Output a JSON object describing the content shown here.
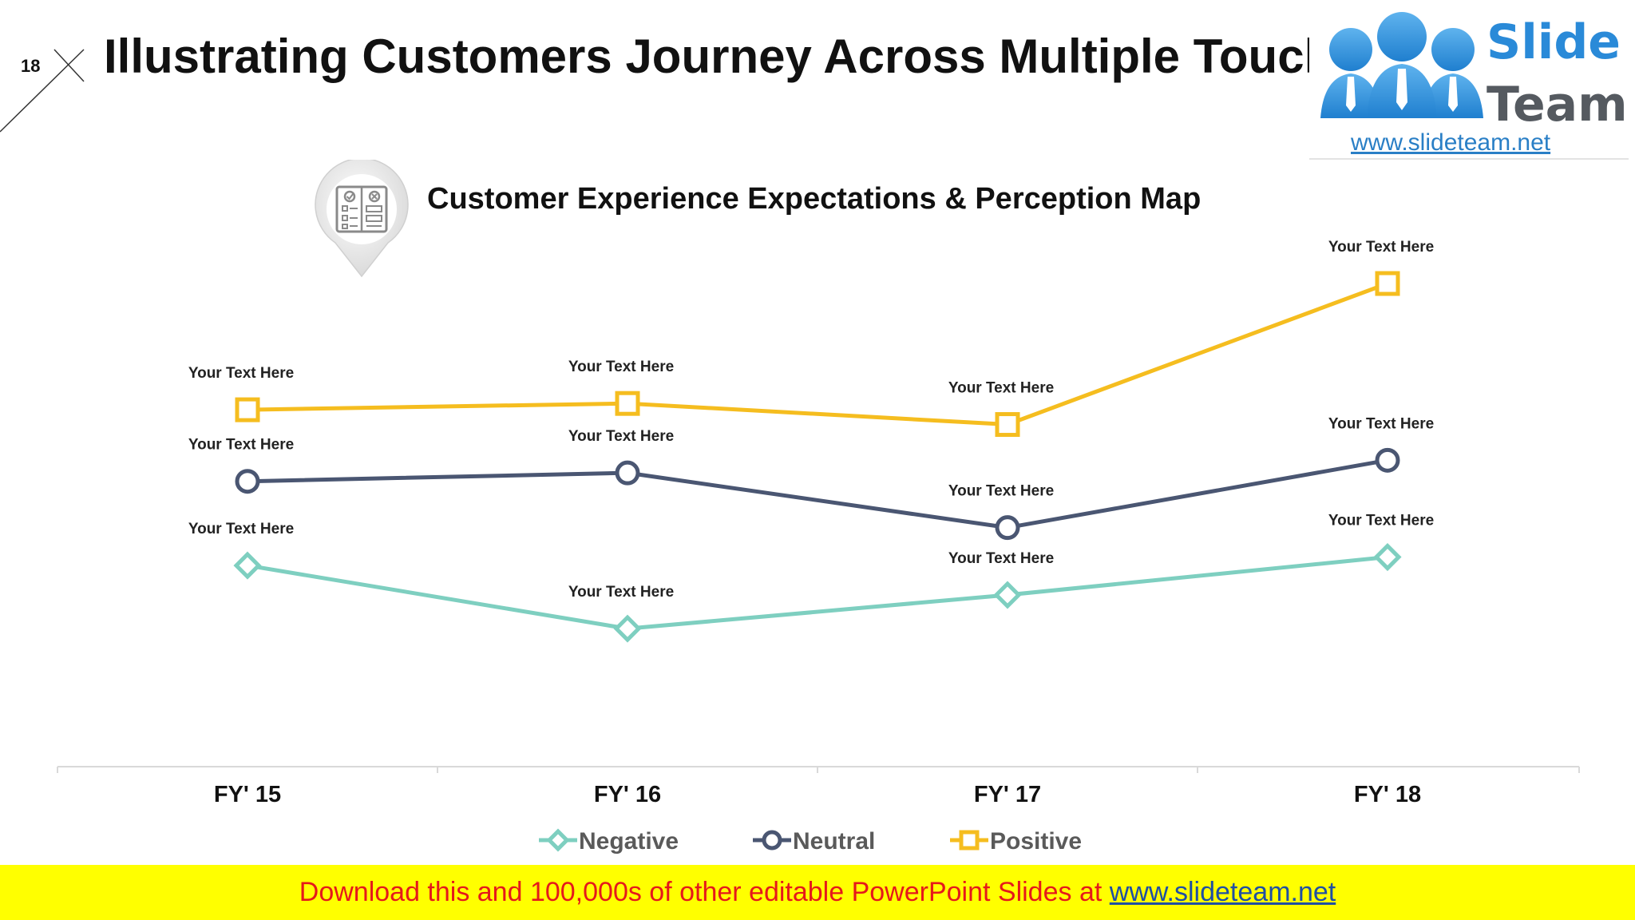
{
  "slide": {
    "number": "18",
    "title": "Illustrating Customers Journey Across Multiple Touchpoints"
  },
  "logo": {
    "word1": "Slide",
    "word2": "Team",
    "url": "www.slideteam.net"
  },
  "footer": {
    "text": "Download this and 100,000s of other editable PowerPoint Slides at ",
    "link": "www.slideteam.net"
  },
  "icon": "checklist-icon",
  "colors": {
    "negative": "#7ecfc0",
    "neutral": "#4a5672",
    "positive": "#f5bd1f",
    "footer_bg": "#ffff00",
    "footer_text": "#e5191b"
  },
  "chart_data": {
    "type": "line",
    "title": "Customer Experience Expectations & Perception Map",
    "categories": [
      "FY' 15",
      "FY' 16",
      "FY' 17",
      "FY' 18"
    ],
    "ylim": [
      0,
      100
    ],
    "grid": false,
    "legend": "bottom",
    "series": [
      {
        "name": "Negative",
        "marker": "diamond",
        "color": "#7ecfc0",
        "values": [
          33,
          18,
          26,
          35
        ],
        "labels": [
          "Your Text Here",
          "Your Text Here",
          "Your Text Here",
          "Your Text Here"
        ]
      },
      {
        "name": "Neutral",
        "marker": "circle",
        "color": "#4a5672",
        "values": [
          53,
          55,
          42,
          58
        ],
        "labels": [
          "Your Text Here",
          "Your Text Here",
          "Your Text Here",
          "Your Text Here"
        ]
      },
      {
        "name": "Positive",
        "marker": "square",
        "color": "#f5bd1f",
        "values": [
          70,
          71.5,
          66.5,
          100
        ],
        "labels": [
          "Your Text Here",
          "Your Text Here",
          "Your Text Here",
          "Your Text Here"
        ]
      }
    ]
  }
}
